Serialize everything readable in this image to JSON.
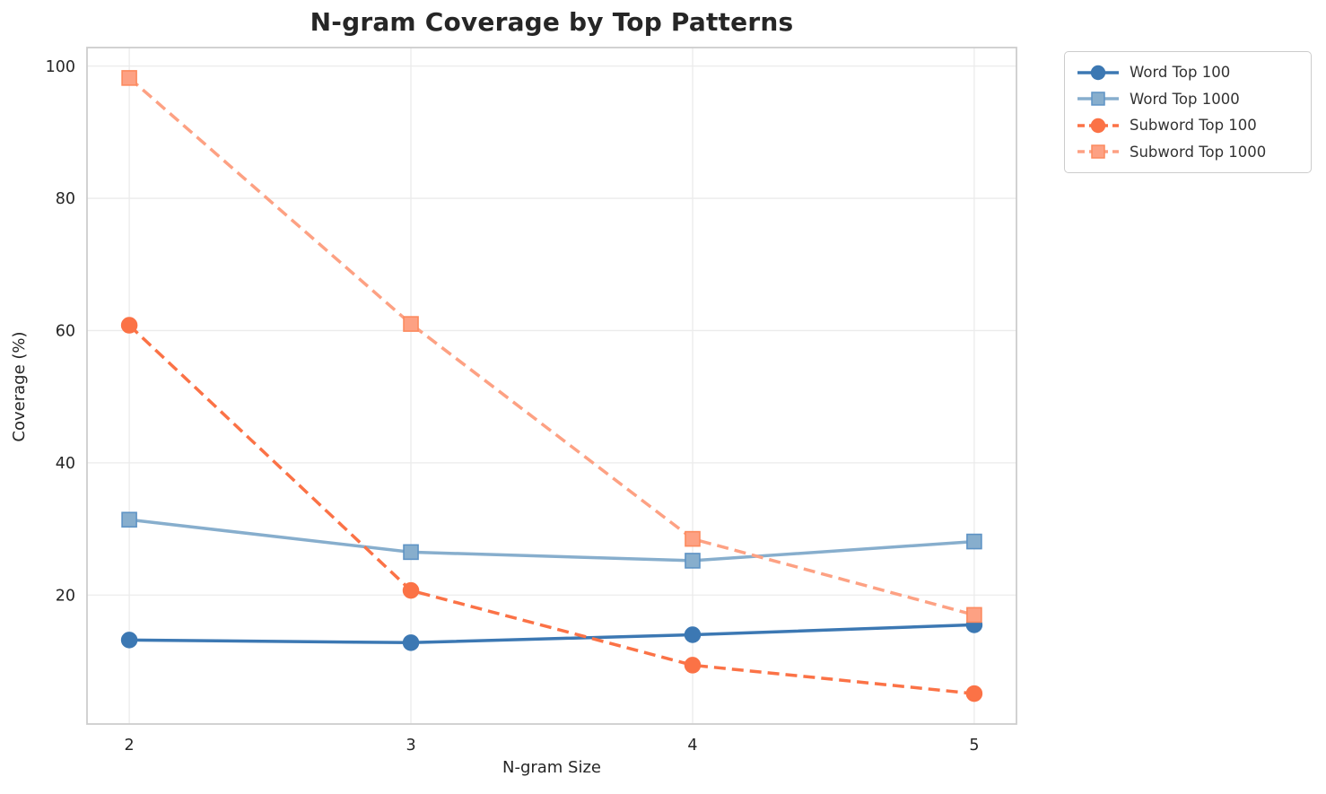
{
  "chart_data": {
    "type": "line",
    "title": "N-gram Coverage by Top Patterns",
    "xlabel": "N-gram Size",
    "ylabel": "Coverage (%)",
    "x": [
      2,
      3,
      4,
      5
    ],
    "x_ticks": [
      2,
      3,
      4,
      5
    ],
    "y_ticks": [
      20,
      40,
      60,
      80,
      100
    ],
    "xlim": [
      1.85,
      5.15
    ],
    "ylim": [
      0.5,
      102.8
    ],
    "grid": true,
    "legend_position": "outside-top-right",
    "series": [
      {
        "name": "Word Top 100",
        "values": [
          13.2,
          12.8,
          14.0,
          15.5
        ],
        "color": "#3c78b3",
        "edge_color": "#3c78b3",
        "marker": "circle",
        "line_style": "solid"
      },
      {
        "name": "Word Top 1000",
        "values": [
          31.4,
          26.5,
          25.2,
          28.1
        ],
        "color": "#87aecd",
        "edge_color": "#5e93c5",
        "marker": "square",
        "line_style": "solid"
      },
      {
        "name": "Subword Top 100",
        "values": [
          60.8,
          20.7,
          9.4,
          5.1
        ],
        "color": "#fb7246",
        "edge_color": "#fb7246",
        "marker": "circle",
        "line_style": "dashed"
      },
      {
        "name": "Subword Top 1000",
        "values": [
          98.2,
          61.0,
          28.5,
          17.0
        ],
        "color": "#fda183",
        "edge_color": "#fc8a5e",
        "marker": "square",
        "line_style": "dashed"
      }
    ],
    "style": {
      "grid_color": "#ebebeb",
      "spine_color": "#cdcdcd",
      "text_color": "#262626",
      "legend_text_color": "#333333"
    }
  }
}
